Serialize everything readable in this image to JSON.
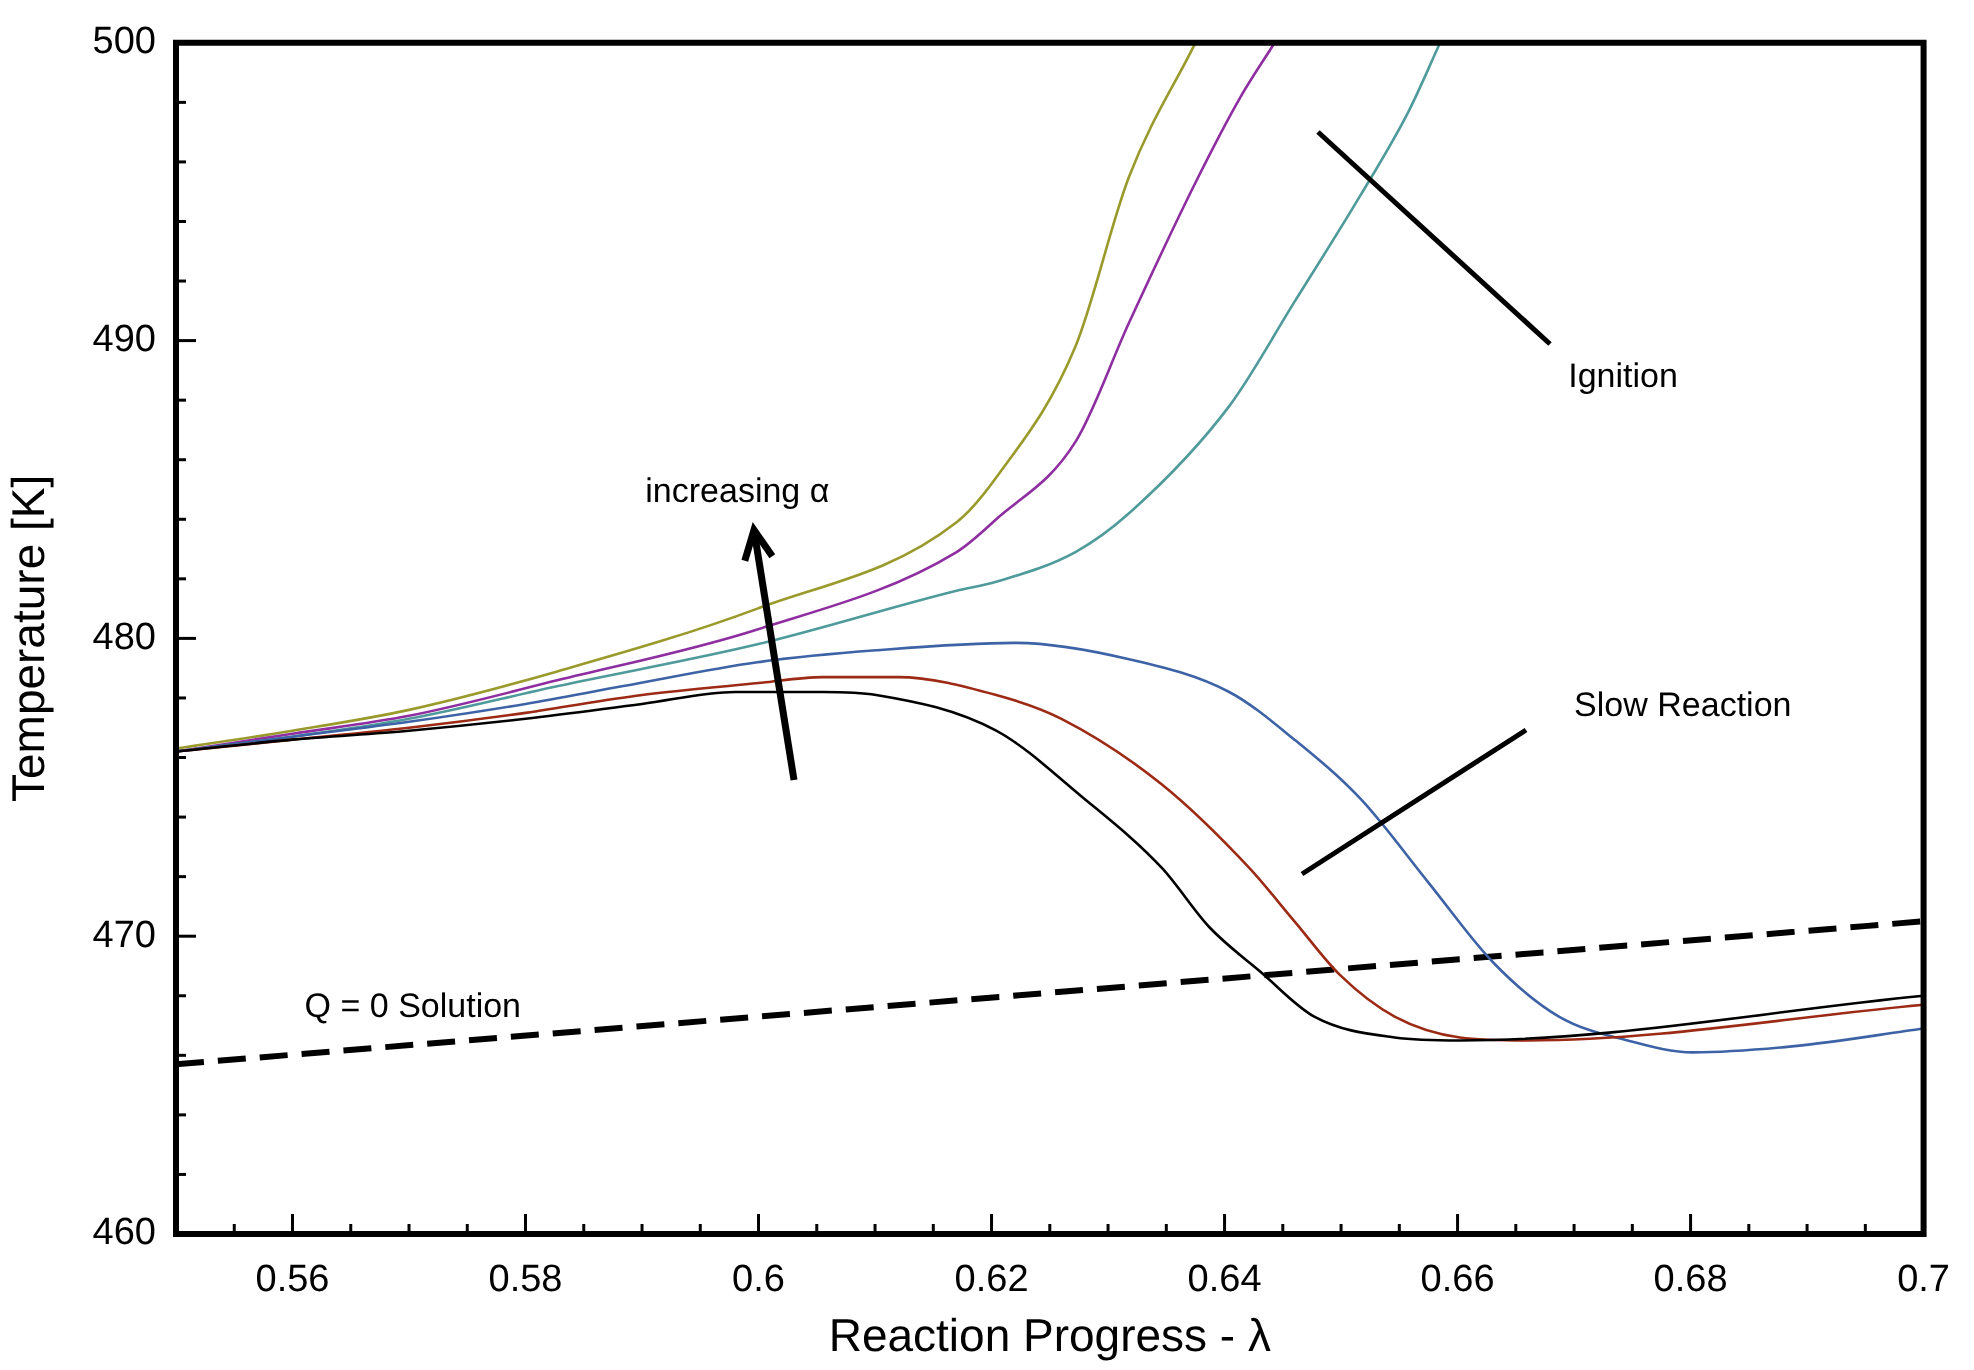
{
  "chart_data": {
    "type": "line",
    "xlabel": "Reaction Progress - λ",
    "ylabel": "Temperature [K]",
    "xlim": [
      0.55,
      0.7
    ],
    "ylim": [
      460,
      500
    ],
    "xticks": [
      {
        "value": 0.555,
        "label": null
      },
      0.56,
      {
        "value": 0.565,
        "label": null
      },
      {
        "value": 0.57,
        "label": null
      },
      {
        "value": 0.575,
        "label": null
      },
      0.58,
      {
        "value": 0.585,
        "label": null
      },
      {
        "value": 0.59,
        "label": null
      },
      {
        "value": 0.595,
        "label": null
      },
      0.6,
      {
        "value": 0.605,
        "label": null
      },
      {
        "value": 0.61,
        "label": null
      },
      {
        "value": 0.615,
        "label": null
      },
      0.62,
      {
        "value": 0.625,
        "label": null
      },
      {
        "value": 0.63,
        "label": null
      },
      {
        "value": 0.635,
        "label": null
      },
      0.64,
      {
        "value": 0.645,
        "label": null
      },
      {
        "value": 0.65,
        "label": null
      },
      {
        "value": 0.655,
        "label": null
      },
      0.66,
      {
        "value": 0.665,
        "label": null
      },
      {
        "value": 0.67,
        "label": null
      },
      {
        "value": 0.675,
        "label": null
      },
      0.68,
      {
        "value": 0.685,
        "label": null
      },
      {
        "value": 0.69,
        "label": null
      },
      {
        "value": 0.695,
        "label": null
      },
      0.7
    ],
    "yticks": [
      460,
      {
        "value": 462,
        "label": null
      },
      {
        "value": 464,
        "label": null
      },
      {
        "value": 466,
        "label": null
      },
      {
        "value": 468,
        "label": null
      },
      470,
      {
        "value": 472,
        "label": null
      },
      {
        "value": 474,
        "label": null
      },
      {
        "value": 476,
        "label": null
      },
      {
        "value": 478,
        "label": null
      },
      480,
      {
        "value": 482,
        "label": null
      },
      {
        "value": 484,
        "label": null
      },
      {
        "value": 486,
        "label": null
      },
      {
        "value": 488,
        "label": null
      },
      490,
      {
        "value": 492,
        "label": null
      },
      {
        "value": 494,
        "label": null
      },
      {
        "value": 496,
        "label": null
      },
      {
        "value": 498,
        "label": null
      },
      500
    ],
    "marker": "none",
    "series": [
      {
        "color": "#000000",
        "x": [
          0.55,
          0.56,
          0.57,
          0.58,
          0.59,
          0.598,
          0.6055,
          0.6101,
          0.6204,
          0.6277,
          0.6346,
          0.6387,
          0.6431,
          0.6477,
          0.6546,
          0.6602,
          0.7
        ],
        "values": [
          476.2,
          476.6,
          476.9,
          477.3,
          477.8,
          478.2,
          478.2,
          478.1,
          476.9,
          474.7,
          472.3,
          470.3,
          468.8,
          467.3,
          466.6,
          466.5,
          468.0
        ]
      },
      {
        "color": "#9c2a14",
        "x": [
          0.55,
          0.56,
          0.57,
          0.58,
          0.59,
          0.6,
          0.6055,
          0.612,
          0.6204,
          0.626,
          0.6346,
          0.6421,
          0.646,
          0.6499,
          0.6546,
          0.6602,
          0.666,
          0.7
        ],
        "values": [
          476.2,
          476.6,
          477.0,
          477.5,
          478.1,
          478.5,
          478.7,
          478.7,
          478.1,
          477.3,
          475.1,
          472.3,
          470.5,
          468.7,
          467.3,
          466.6,
          466.5,
          467.7
        ]
      },
      {
        "color": "#3d63a6",
        "x": [
          0.55,
          0.56,
          0.57,
          0.58,
          0.5884,
          0.5999,
          0.6101,
          0.622,
          0.6318,
          0.6404,
          0.646,
          0.6517,
          0.6575,
          0.6631,
          0.6687,
          0.6746,
          0.6802,
          0.6887,
          0.7
        ],
        "values": [
          476.2,
          476.7,
          477.2,
          477.8,
          478.4,
          479.2,
          479.6,
          479.85,
          479.3,
          478.2,
          476.6,
          474.6,
          471.8,
          469.1,
          467.3,
          466.5,
          466.1,
          466.3,
          466.9
        ]
      },
      {
        "color": "#4f9a9a",
        "x": [
          0.55,
          0.56,
          0.57,
          0.5828,
          0.5999,
          0.617,
          0.6204,
          0.6272,
          0.6318,
          0.6404,
          0.646,
          0.6517,
          0.6558,
          0.6585
        ],
        "values": [
          476.2,
          476.7,
          477.3,
          478.4,
          479.8,
          481.6,
          481.9,
          482.9,
          484.2,
          487.8,
          491.3,
          494.9,
          497.7,
          500
        ]
      },
      {
        "color": "#8e2ea0",
        "x": [
          0.55,
          0.56,
          0.57,
          0.5828,
          0.5999,
          0.617,
          0.6204,
          0.6272,
          0.6318,
          0.6375,
          0.6414,
          0.6443
        ],
        "values": [
          476.2,
          476.8,
          477.4,
          478.6,
          480.3,
          482.9,
          484.0,
          486.6,
          490.6,
          495.3,
          498.2,
          500
        ]
      },
      {
        "color": "#9a9a2c",
        "x": [
          0.55,
          0.56,
          0.57,
          0.5828,
          0.5999,
          0.617,
          0.6204,
          0.6272,
          0.6318,
          0.6375
        ],
        "values": [
          476.3,
          476.9,
          477.6,
          478.9,
          481.0,
          483.9,
          485.4,
          489.8,
          495.5,
          500
        ]
      },
      {
        "color": "#000000",
        "line_style": "dashed",
        "x": [
          0.55,
          0.7
        ],
        "values": [
          465.7,
          470.5
        ]
      }
    ],
    "annotations": [
      "increasing α",
      "Ignition",
      "Slow Reaction",
      "Q = 0 Solution"
    ]
  }
}
